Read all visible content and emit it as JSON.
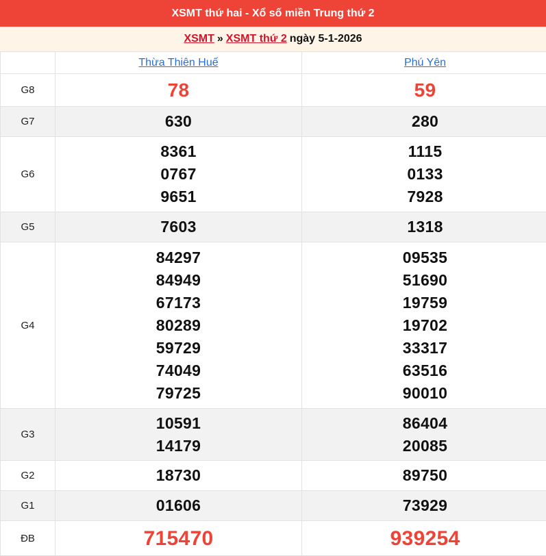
{
  "header": {
    "title": "XSMT thứ hai - Xổ số miền Trung thứ 2"
  },
  "breadcrumb": {
    "link1": "XSMT",
    "sep": "»",
    "link2": "XSMT thứ 2",
    "date_text": "ngày 5-1-2026"
  },
  "colors": {
    "header_bg": "#ee4337",
    "accent_red": "#ee4337",
    "link_blue": "#2a6fd6",
    "breadcrumb_link": "#d0142c"
  },
  "provinces": [
    "Thừa Thiên Huế",
    "Phú Yên"
  ],
  "prizes": [
    {
      "label": "G8",
      "style": "g8",
      "values": [
        [
          "78"
        ],
        [
          "59"
        ]
      ]
    },
    {
      "label": "G7",
      "values": [
        [
          "630"
        ],
        [
          "280"
        ]
      ]
    },
    {
      "label": "G6",
      "values": [
        [
          "8361",
          "0767",
          "9651"
        ],
        [
          "1115",
          "0133",
          "7928"
        ]
      ]
    },
    {
      "label": "G5",
      "values": [
        [
          "7603"
        ],
        [
          "1318"
        ]
      ]
    },
    {
      "label": "G4",
      "values": [
        [
          "84297",
          "84949",
          "67173",
          "80289",
          "59729",
          "74049",
          "79725"
        ],
        [
          "09535",
          "51690",
          "19759",
          "19702",
          "33317",
          "63516",
          "90010"
        ]
      ]
    },
    {
      "label": "G3",
      "values": [
        [
          "10591",
          "14179"
        ],
        [
          "86404",
          "20085"
        ]
      ]
    },
    {
      "label": "G2",
      "values": [
        [
          "18730"
        ],
        [
          "89750"
        ]
      ]
    },
    {
      "label": "G1",
      "values": [
        [
          "01606"
        ],
        [
          "73929"
        ]
      ]
    },
    {
      "label": "ĐB",
      "style": "db",
      "values": [
        [
          "715470"
        ],
        [
          "939254"
        ]
      ]
    }
  ]
}
